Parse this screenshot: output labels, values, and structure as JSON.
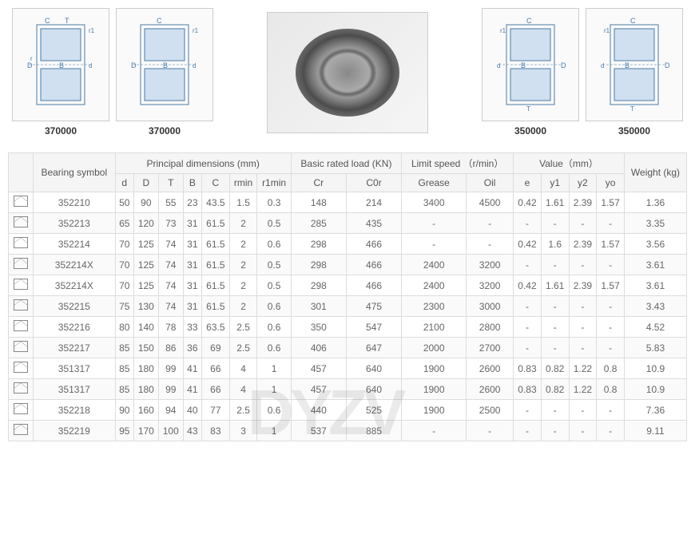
{
  "diagrams": {
    "left": [
      {
        "label": "370000"
      },
      {
        "label": "370000"
      }
    ],
    "right": [
      {
        "label": "350000"
      },
      {
        "label": "350000"
      }
    ]
  },
  "watermark": "DYZV",
  "table": {
    "header_groups": [
      {
        "label": "",
        "span": 1
      },
      {
        "label": "Bearing symbol",
        "span": 1,
        "rowspan": 2
      },
      {
        "label": "Principal dimensions (mm)",
        "span": 7
      },
      {
        "label": "Basic rated load (KN)",
        "span": 2
      },
      {
        "label": "Limit speed （r/min）",
        "span": 2
      },
      {
        "label": "Value（mm）",
        "span": 4
      },
      {
        "label": "Weight (kg)",
        "span": 1,
        "rowspan": 2
      }
    ],
    "sub_headers": [
      "",
      "d",
      "D",
      "T",
      "B",
      "C",
      "rmin",
      "r1min",
      "Cr",
      "C0r",
      "Grease",
      "Oil",
      "e",
      "y1",
      "y2",
      "yo"
    ],
    "rows": [
      {
        "symbol": "352210",
        "d": "50",
        "D": "90",
        "T": "55",
        "B": "23",
        "C": "43.5",
        "rmin": "1.5",
        "r1min": "0.3",
        "Cr": "148",
        "C0r": "214",
        "grease": "3400",
        "oil": "4500",
        "e": "0.42",
        "y1": "1.61",
        "y2": "2.39",
        "yo": "1.57",
        "weight": "1.36"
      },
      {
        "symbol": "352213",
        "d": "65",
        "D": "120",
        "T": "73",
        "B": "31",
        "C": "61.5",
        "rmin": "2",
        "r1min": "0.5",
        "Cr": "285",
        "C0r": "435",
        "grease": "-",
        "oil": "-",
        "e": "-",
        "y1": "-",
        "y2": "-",
        "yo": "-",
        "weight": "3.35"
      },
      {
        "symbol": "352214",
        "d": "70",
        "D": "125",
        "T": "74",
        "B": "31",
        "C": "61.5",
        "rmin": "2",
        "r1min": "0.6",
        "Cr": "298",
        "C0r": "466",
        "grease": "-",
        "oil": "-",
        "e": "0.42",
        "y1": "1.6",
        "y2": "2.39",
        "yo": "1.57",
        "weight": "3.56"
      },
      {
        "symbol": "352214X",
        "d": "70",
        "D": "125",
        "T": "74",
        "B": "31",
        "C": "61.5",
        "rmin": "2",
        "r1min": "0.5",
        "Cr": "298",
        "C0r": "466",
        "grease": "2400",
        "oil": "3200",
        "e": "-",
        "y1": "-",
        "y2": "-",
        "yo": "-",
        "weight": "3.61"
      },
      {
        "symbol": "352214X",
        "d": "70",
        "D": "125",
        "T": "74",
        "B": "31",
        "C": "61.5",
        "rmin": "2",
        "r1min": "0.5",
        "Cr": "298",
        "C0r": "466",
        "grease": "2400",
        "oil": "3200",
        "e": "0.42",
        "y1": "1.61",
        "y2": "2.39",
        "yo": "1.57",
        "weight": "3.61"
      },
      {
        "symbol": "352215",
        "d": "75",
        "D": "130",
        "T": "74",
        "B": "31",
        "C": "61.5",
        "rmin": "2",
        "r1min": "0.6",
        "Cr": "301",
        "C0r": "475",
        "grease": "2300",
        "oil": "3000",
        "e": "-",
        "y1": "-",
        "y2": "-",
        "yo": "-",
        "weight": "3.43"
      },
      {
        "symbol": "352216",
        "d": "80",
        "D": "140",
        "T": "78",
        "B": "33",
        "C": "63.5",
        "rmin": "2.5",
        "r1min": "0.6",
        "Cr": "350",
        "C0r": "547",
        "grease": "2100",
        "oil": "2800",
        "e": "-",
        "y1": "-",
        "y2": "-",
        "yo": "-",
        "weight": "4.52"
      },
      {
        "symbol": "352217",
        "d": "85",
        "D": "150",
        "T": "86",
        "B": "36",
        "C": "69",
        "rmin": "2.5",
        "r1min": "0.6",
        "Cr": "406",
        "C0r": "647",
        "grease": "2000",
        "oil": "2700",
        "e": "-",
        "y1": "-",
        "y2": "-",
        "yo": "-",
        "weight": "5.83"
      },
      {
        "symbol": "351317",
        "d": "85",
        "D": "180",
        "T": "99",
        "B": "41",
        "C": "66",
        "rmin": "4",
        "r1min": "1",
        "Cr": "457",
        "C0r": "640",
        "grease": "1900",
        "oil": "2600",
        "e": "0.83",
        "y1": "0.82",
        "y2": "1.22",
        "yo": "0.8",
        "weight": "10.9"
      },
      {
        "symbol": "351317",
        "d": "85",
        "D": "180",
        "T": "99",
        "B": "41",
        "C": "66",
        "rmin": "4",
        "r1min": "1",
        "Cr": "457",
        "C0r": "640",
        "grease": "1900",
        "oil": "2600",
        "e": "0.83",
        "y1": "0.82",
        "y2": "1.22",
        "yo": "0.8",
        "weight": "10.9"
      },
      {
        "symbol": "352218",
        "d": "90",
        "D": "160",
        "T": "94",
        "B": "40",
        "C": "77",
        "rmin": "2.5",
        "r1min": "0.6",
        "Cr": "440",
        "C0r": "525",
        "grease": "1900",
        "oil": "2500",
        "e": "-",
        "y1": "-",
        "y2": "-",
        "yo": "-",
        "weight": "7.36"
      },
      {
        "symbol": "352219",
        "d": "95",
        "D": "170",
        "T": "100",
        "B": "43",
        "C": "83",
        "rmin": "3",
        "r1min": "1",
        "Cr": "537",
        "C0r": "885",
        "grease": "-",
        "oil": "-",
        "e": "-",
        "y1": "-",
        "y2": "-",
        "yo": "-",
        "weight": "9.11"
      }
    ]
  },
  "styling": {
    "header_bg": "#f5f5f5",
    "border_color": "#dddddd",
    "text_color": "#666666",
    "row_alt_bg": "#fafafa",
    "font_size": 12
  }
}
